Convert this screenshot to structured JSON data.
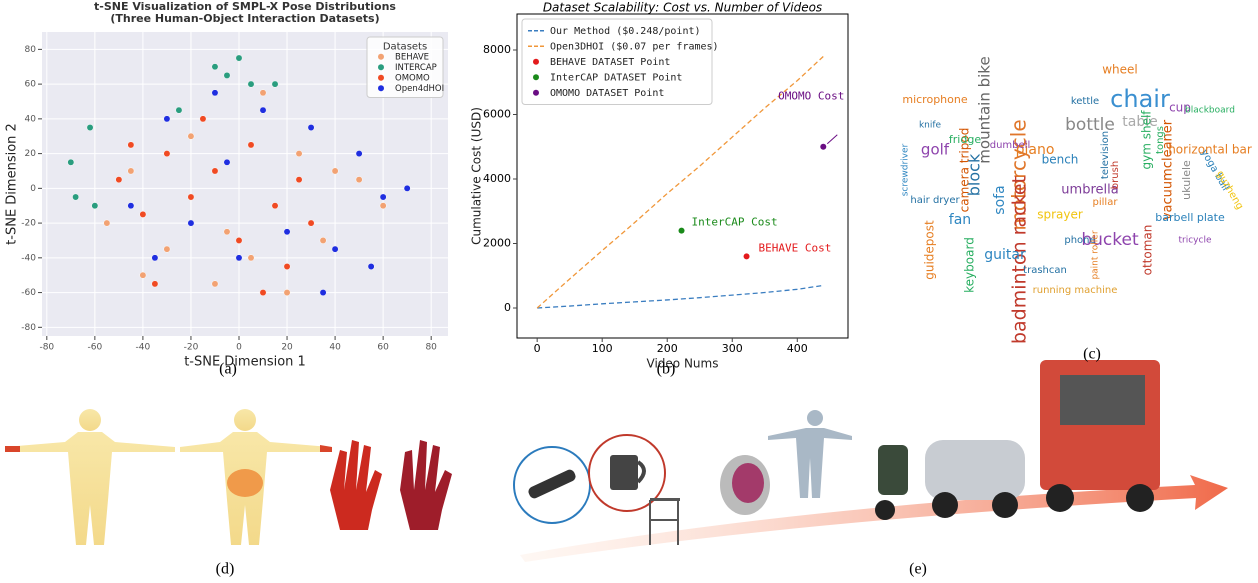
{
  "chart_data": [
    {
      "type": "scatter",
      "title": "t-SNE Visualization of SMPL-X Pose Distributions",
      "subtitle": "(Three Human-Object Interaction Datasets)",
      "x_label": "t-SNE Dimension 1",
      "y_label": "t-SNE Dimension 2",
      "xlim": [
        -82,
        87
      ],
      "ylim": [
        -85,
        90
      ],
      "xticks": [
        -80,
        -60,
        -40,
        -20,
        0,
        20,
        40,
        60,
        80
      ],
      "yticks": [
        -80,
        -60,
        -40,
        -20,
        0,
        20,
        40,
        60,
        80
      ],
      "grid": true,
      "legend_title": "Datasets",
      "legend": "upper right",
      "series": [
        {
          "name": "BEHAVE",
          "color": "#f2a273",
          "x": [
            -45,
            -30,
            -10,
            5,
            20,
            35,
            -55,
            -20,
            10,
            40,
            60,
            -5,
            25,
            -40,
            50
          ],
          "values": [
            10,
            -35,
            -55,
            -40,
            -60,
            -30,
            -20,
            30,
            55,
            10,
            -10,
            -25,
            20,
            -50,
            5
          ]
        },
        {
          "name": "INTERCAP",
          "color": "#2a9d7f",
          "x": [
            -70,
            -68,
            -62,
            -10,
            -5,
            0,
            5,
            -25,
            -60,
            15
          ],
          "values": [
            15,
            -5,
            35,
            70,
            65,
            75,
            60,
            45,
            -10,
            60
          ]
        },
        {
          "name": "OMOMO",
          "color": "#f04a23",
          "x": [
            -50,
            -40,
            -30,
            -20,
            -10,
            0,
            10,
            20,
            30,
            -35,
            -15,
            5,
            15,
            -45,
            25
          ],
          "values": [
            5,
            -15,
            20,
            -5,
            10,
            -30,
            -60,
            -45,
            -20,
            -55,
            40,
            25,
            -10,
            25,
            5
          ]
        },
        {
          "name": "Open4dHOI",
          "color": "#1f2ee0",
          "x": [
            -30,
            -10,
            10,
            30,
            50,
            60,
            -45,
            -20,
            0,
            20,
            40,
            70,
            -5,
            35,
            55,
            -35
          ],
          "values": [
            40,
            55,
            45,
            35,
            20,
            -5,
            -10,
            -20,
            -40,
            -25,
            -35,
            0,
            15,
            -60,
            -45,
            -40
          ]
        }
      ]
    },
    {
      "type": "line",
      "title": "Dataset Scalability: Cost vs. Number of Videos",
      "x_label": "Video Nums",
      "y_label": "Cumulative Cost (USD)",
      "xlim": [
        -31,
        478
      ],
      "ylim": [
        -930,
        9116
      ],
      "xticks": [
        0,
        100,
        200,
        300,
        400
      ],
      "yticks": [
        0,
        2000,
        4000,
        6000,
        8000
      ],
      "grid": false,
      "legend": "upper left",
      "series": [
        {
          "name": "Our Method ($0.248/point)",
          "color": "#3a7dc0",
          "style": "dashed",
          "x": [
            0,
            50,
            100,
            150,
            200,
            250,
            300,
            350,
            400,
            440
          ],
          "values": [
            0,
            60,
            130,
            190,
            250,
            320,
            400,
            480,
            580,
            700
          ]
        },
        {
          "name": "Open3DHOI ($0.07 per frames)",
          "color": "#f0973a",
          "style": "dashed",
          "x": [
            0,
            50,
            100,
            150,
            200,
            250,
            300,
            350,
            400,
            440
          ],
          "values": [
            0,
            900,
            1780,
            2650,
            3550,
            4400,
            5300,
            6200,
            7050,
            7800
          ]
        },
        {
          "name": "BEHAVE DATASET Point",
          "color": "#e31a1c",
          "style": "point",
          "label": "BEHAVE Cost",
          "x": [
            322
          ],
          "values": [
            1600
          ]
        },
        {
          "name": "InterCAP DATASET Point",
          "color": "#1a8a1a",
          "style": "point",
          "label": "InterCAP Cost",
          "x": [
            222
          ],
          "values": [
            2400
          ]
        },
        {
          "name": "OMOMO DATASET Point",
          "color": "#6a0d83",
          "style": "point",
          "label": "OMOMO Cost",
          "x": [
            440
          ],
          "values": [
            5000
          ]
        }
      ]
    }
  ],
  "word_cloud": {
    "words": [
      {
        "text": "chair",
        "color": "#3a8fd0"
      },
      {
        "text": "motorcycle",
        "color": "#e0762a"
      },
      {
        "text": "badminton racket",
        "color": "#c0392b"
      },
      {
        "text": "bottle",
        "color": "#888888"
      },
      {
        "text": "mountain bike",
        "color": "#666666"
      },
      {
        "text": "bucket",
        "color": "#8e44ad"
      },
      {
        "text": "sofa",
        "color": "#2e86c1"
      },
      {
        "text": "guitar",
        "color": "#2e86c1"
      },
      {
        "text": "block",
        "color": "#2471a3"
      },
      {
        "text": "piano",
        "color": "#e67e22"
      },
      {
        "text": "golf",
        "color": "#8e44ad"
      },
      {
        "text": "umbrella",
        "color": "#7d3c98"
      },
      {
        "text": "table",
        "color": "#aaaaaa"
      },
      {
        "text": "vacuumcleaner",
        "color": "#d35400"
      },
      {
        "text": "horizontal bar",
        "color": "#e67e22"
      },
      {
        "text": "cup",
        "color": "#8e44ad"
      },
      {
        "text": "barbell plate",
        "color": "#2980b9"
      },
      {
        "text": "fan",
        "color": "#2e86c1"
      },
      {
        "text": "keyboard",
        "color": "#27ae60"
      },
      {
        "text": "guidepost",
        "color": "#e67e22"
      },
      {
        "text": "camera tripod",
        "color": "#d35400"
      },
      {
        "text": "bench",
        "color": "#2980b9"
      },
      {
        "text": "microphone",
        "color": "#e67e22"
      },
      {
        "text": "television",
        "color": "#2471a3"
      },
      {
        "text": "kettle",
        "color": "#2471a3"
      },
      {
        "text": "gym shelf",
        "color": "#27ae60"
      },
      {
        "text": "sprayer",
        "color": "#f1c40f"
      },
      {
        "text": "ottoman",
        "color": "#c0392b"
      },
      {
        "text": "running machine",
        "color": "#e0a030"
      },
      {
        "text": "fridge",
        "color": "#27ae60"
      },
      {
        "text": "ukulele",
        "color": "#888888"
      },
      {
        "text": "yoga ball",
        "color": "#2980b9"
      },
      {
        "text": "tongs",
        "color": "#27ae60"
      },
      {
        "text": "wheel",
        "color": "#e67e22"
      },
      {
        "text": "phone",
        "color": "#2471a3"
      },
      {
        "text": "trashcan",
        "color": "#2471a3"
      },
      {
        "text": "paint roller",
        "color": "#e67e22"
      },
      {
        "text": "pillar",
        "color": "#e67e22"
      },
      {
        "text": "dumbell",
        "color": "#8e44ad"
      },
      {
        "text": "screwdriver",
        "color": "#2e86c1"
      },
      {
        "text": "blackboard",
        "color": "#27ae60"
      },
      {
        "text": "guzheng",
        "color": "#f1c40f"
      },
      {
        "text": "tricycle",
        "color": "#8e44ad"
      },
      {
        "text": "brush",
        "color": "#c0392b"
      },
      {
        "text": "hair dryer",
        "color": "#2471a3"
      },
      {
        "text": "knife",
        "color": "#2471a3"
      }
    ]
  },
  "captions": [
    "(a)",
    "(b)",
    "(c)",
    "(d)",
    "(e)"
  ]
}
